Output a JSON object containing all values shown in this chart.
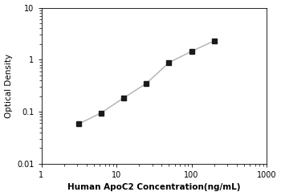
{
  "x": [
    3.125,
    6.25,
    12.5,
    25,
    50,
    100,
    200
  ],
  "y": [
    0.058,
    0.095,
    0.185,
    0.35,
    0.88,
    1.45,
    2.3
  ],
  "xlabel": "Human ApoC2 Concentration(ng/mL)",
  "ylabel": "Optical Density",
  "xlim": [
    1,
    1000
  ],
  "ylim": [
    0.01,
    10
  ],
  "xticks": [
    1,
    10,
    100,
    1000
  ],
  "yticks": [
    0.01,
    0.1,
    1,
    10
  ],
  "line_color": "#b0b0b0",
  "marker_color": "#1a1a1a",
  "marker": "s",
  "markersize": 4,
  "linewidth": 1.0,
  "xlabel_fontsize": 7.5,
  "ylabel_fontsize": 7.5,
  "tick_fontsize": 7,
  "xlabel_fontweight": "bold",
  "figure_bg": "#ffffff"
}
